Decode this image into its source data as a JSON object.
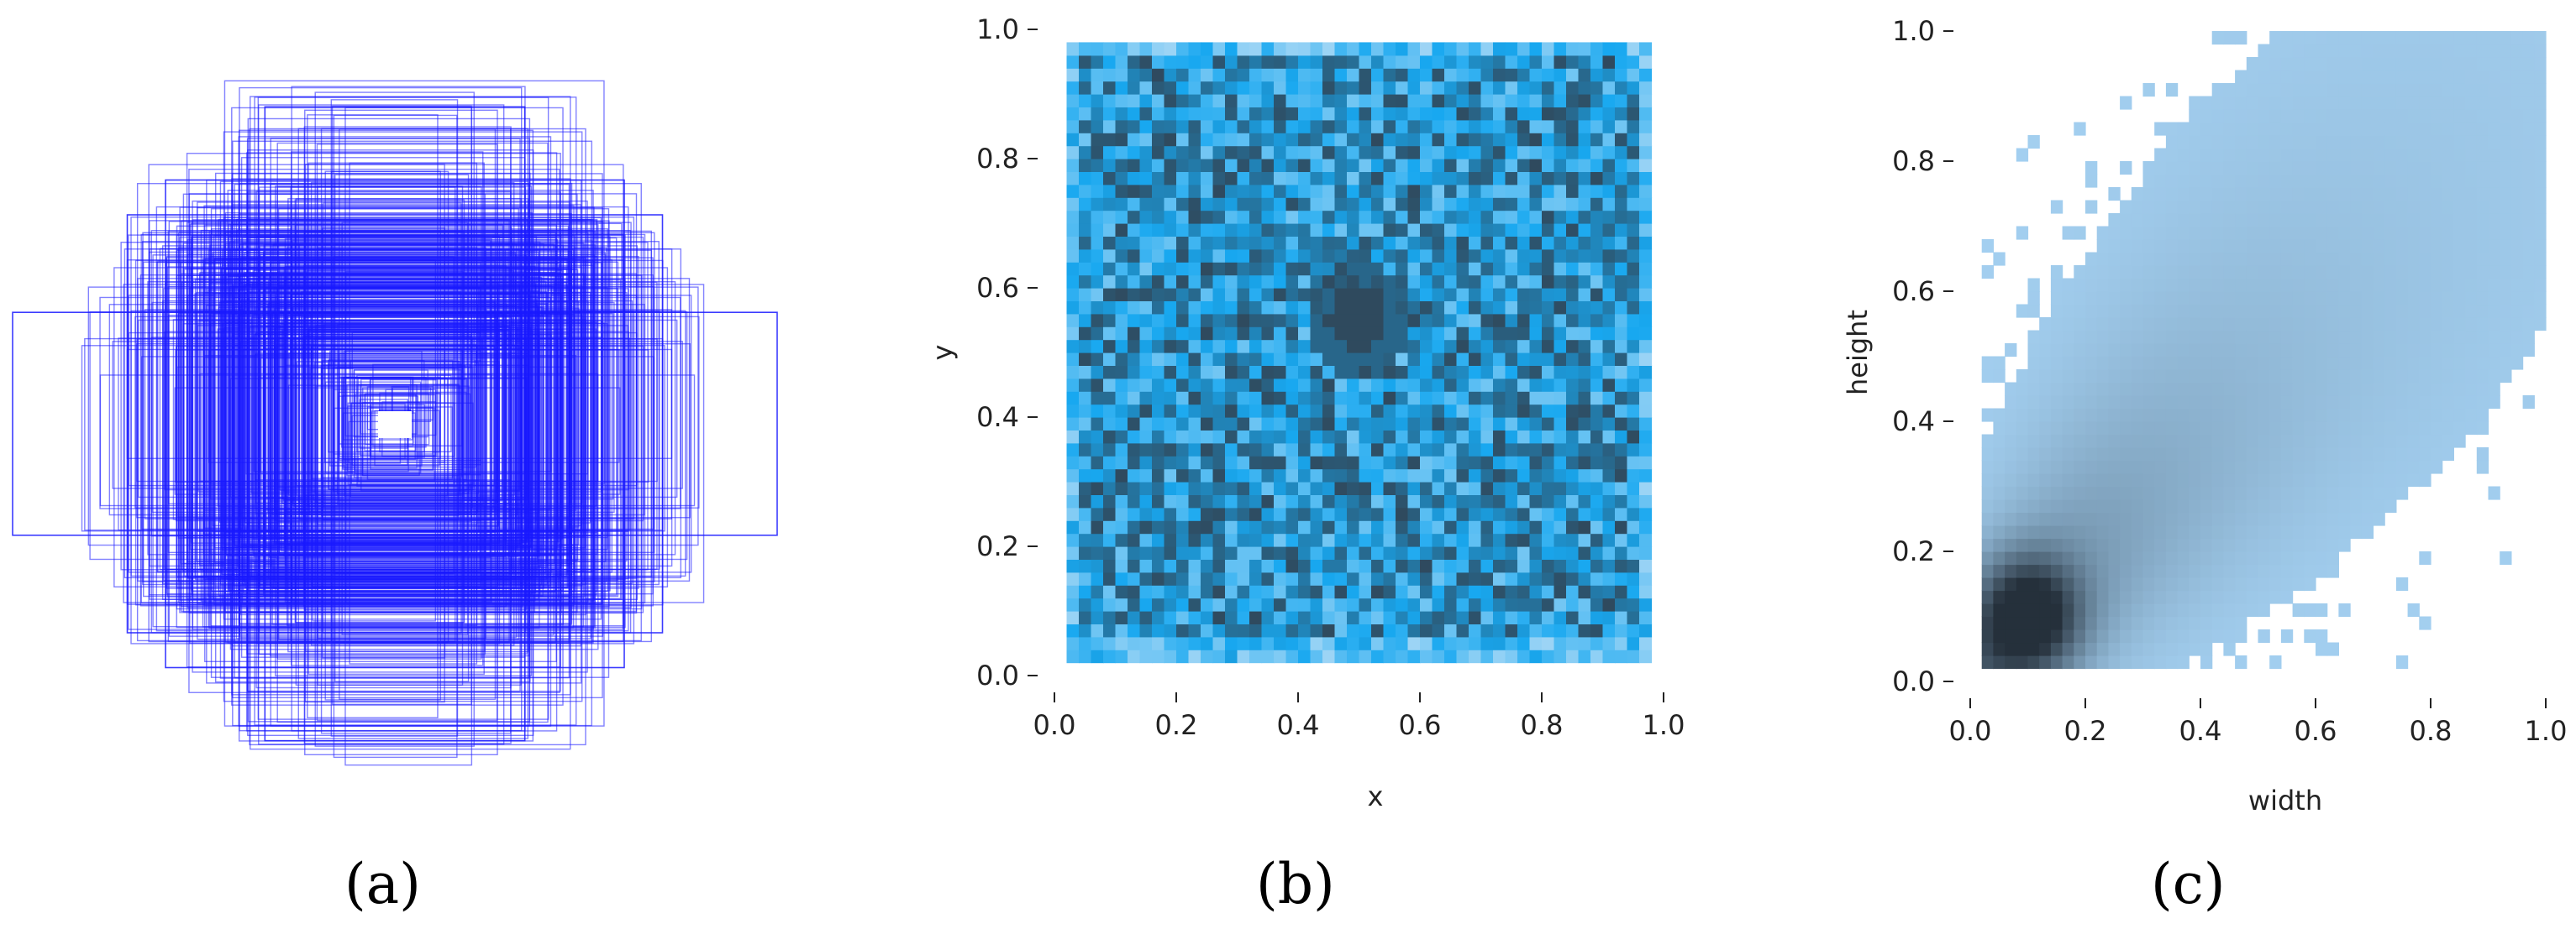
{
  "colors": {
    "box_stroke": "#1a1aff",
    "heat_low": "#cfe5f7",
    "heat_mid": "#18a8f0",
    "heat_high": "#2f4a5e",
    "hist_low": "#a3cff0",
    "hist_high": "#25303b",
    "tick": "#222222"
  },
  "panels": [
    {
      "label": "(a)"
    },
    {
      "label": "(b)"
    },
    {
      "label": "(c)"
    }
  ],
  "chart_data": [
    {
      "type": "other",
      "description_kind": "overlaid bounding boxes",
      "boxes": [
        {
          "cx": 0.5,
          "cy": 0.5,
          "w": 1.0,
          "h": 0.32
        },
        {
          "cx": 0.5,
          "cy": 0.5,
          "w": 0.34,
          "h": 0.91
        },
        {
          "cx": 0.5,
          "cy": 0.5,
          "w": 0.04,
          "h": 0.04
        },
        {
          "cx": 0.5,
          "cy": 0.5,
          "w": 0.7,
          "h": 0.6
        },
        {
          "cx": 0.5,
          "cy": 0.5,
          "w": 0.6,
          "h": 0.7
        }
      ]
    },
    {
      "type": "heatmap",
      "xlabel": "x",
      "ylabel": "y",
      "xlim": [
        0.0,
        1.0
      ],
      "ylim": [
        0.0,
        1.0
      ],
      "xticks": [
        "0.0",
        "0.2",
        "0.4",
        "0.6",
        "0.8",
        "1.0"
      ],
      "yticks": [
        "0.0",
        "0.2",
        "0.4",
        "0.6",
        "0.8",
        "1.0"
      ],
      "bins": 50,
      "data_extent": {
        "x": [
          0.02,
          0.98
        ],
        "y": [
          0.03,
          0.98
        ]
      },
      "hotspot": {
        "x": 0.5,
        "y": 0.55
      }
    },
    {
      "type": "heatmap",
      "xlabel": "width",
      "ylabel": "height",
      "xlim": [
        0.0,
        1.0
      ],
      "ylim": [
        0.0,
        1.0
      ],
      "xticks": [
        "0.0",
        "0.2",
        "0.4",
        "0.6",
        "0.8",
        "1.0"
      ],
      "yticks": [
        "0.0",
        "0.2",
        "0.4",
        "0.6",
        "0.8",
        "1.0"
      ],
      "bins": 50,
      "peak": {
        "x": 0.1,
        "y": 0.1
      }
    }
  ]
}
